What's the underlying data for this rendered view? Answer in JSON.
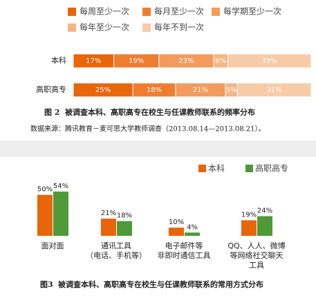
{
  "chart_data": [
    {
      "type": "stacked-bar-horizontal",
      "categories": [
        "本科",
        "高职高专"
      ],
      "series": [
        {
          "name": "每周至少一次",
          "color": "#e8650a",
          "values": [
            17,
            25
          ],
          "value_labels": [
            "17%",
            "25%"
          ]
        },
        {
          "name": "每月至少一次",
          "color": "#ee7d30",
          "values": [
            19,
            18
          ],
          "value_labels": [
            "19%",
            "18%"
          ]
        },
        {
          "name": "每学期至少一次",
          "color": "#f29b5d",
          "values": [
            23,
            21
          ],
          "value_labels": [
            "23%",
            "21%"
          ]
        },
        {
          "name": "每年至少一次",
          "color": "#f5b585",
          "values": [
            6,
            5
          ],
          "value_labels": [
            "6%",
            "5%"
          ]
        },
        {
          "name": "每年不到一次",
          "color": "#f8cba8",
          "values": [
            35,
            31
          ],
          "value_labels": [
            "35%",
            "31%"
          ]
        }
      ],
      "figure": "图 2",
      "title": "被调查本科、高职高专在校生与任课教师联系的频率分布",
      "source": "数据来源：腾讯教育－麦可思大学教师调查（2013.08.14—2013.08.21）。"
    },
    {
      "type": "bar",
      "categories": [
        [
          "面对面"
        ],
        [
          "通讯工具",
          "（电话、手机等）"
        ],
        [
          "电子邮件等",
          "非即时通信工具"
        ],
        [
          "QQ、人人、微博",
          "等网络社交聊天",
          "工具"
        ]
      ],
      "series": [
        {
          "name": "本科",
          "color": "#e8650a",
          "values": [
            50,
            21,
            10,
            19
          ],
          "value_labels": [
            "50%",
            "21%",
            "10%",
            "19%"
          ]
        },
        {
          "name": "高职高专",
          "color": "#4e9a38",
          "values": [
            54,
            18,
            4,
            24
          ],
          "value_labels": [
            "54%",
            "18%",
            "4%",
            "24%"
          ]
        }
      ],
      "figure": "图3",
      "title": "被调查本科、高职高专在校生与任课教师联系的常用方式分布"
    }
  ]
}
